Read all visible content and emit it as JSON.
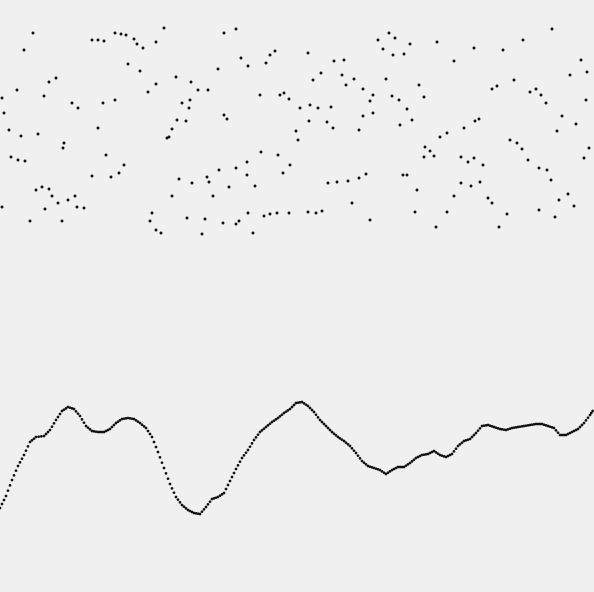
{
  "colors": {
    "background": "#f0f0f0",
    "dot": "#111111"
  }
}
